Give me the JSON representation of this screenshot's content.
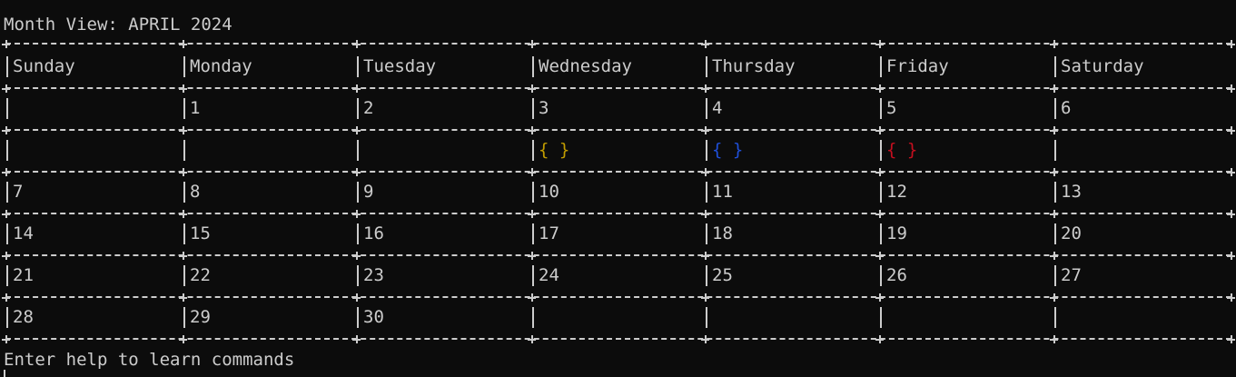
{
  "title": "Month View: APRIL 2024",
  "weekdays": [
    "Sunday",
    "Monday",
    "Tuesday",
    "Wednesday",
    "Thursday",
    "Friday",
    "Saturday"
  ],
  "rows": [
    {
      "kind": "days",
      "cells": [
        "",
        "1",
        "2",
        "3",
        "4",
        "5",
        "6"
      ]
    },
    {
      "kind": "events",
      "cells": [
        {
          "text": ""
        },
        {
          "text": ""
        },
        {
          "text": ""
        },
        {
          "text": "{ }",
          "color": "#c19c00"
        },
        {
          "text": "{ }",
          "color": "#1f4fd8"
        },
        {
          "text": "{ }",
          "color": "#c50f1f"
        },
        {
          "text": ""
        }
      ]
    },
    {
      "kind": "days",
      "cells": [
        "7",
        "8",
        "9",
        "10",
        "11",
        "12",
        "13"
      ]
    },
    {
      "kind": "days",
      "cells": [
        "14",
        "15",
        "16",
        "17",
        "18",
        "19",
        "20"
      ]
    },
    {
      "kind": "days",
      "cells": [
        "21",
        "22",
        "23",
        "24",
        "25",
        "26",
        "27"
      ]
    },
    {
      "kind": "days",
      "cells": [
        "28",
        "29",
        "30",
        "",
        "",
        "",
        ""
      ]
    }
  ],
  "prompt": "Enter help to learn commands",
  "colors": {
    "background": "#0c0c0c",
    "foreground": "#cccccc"
  }
}
